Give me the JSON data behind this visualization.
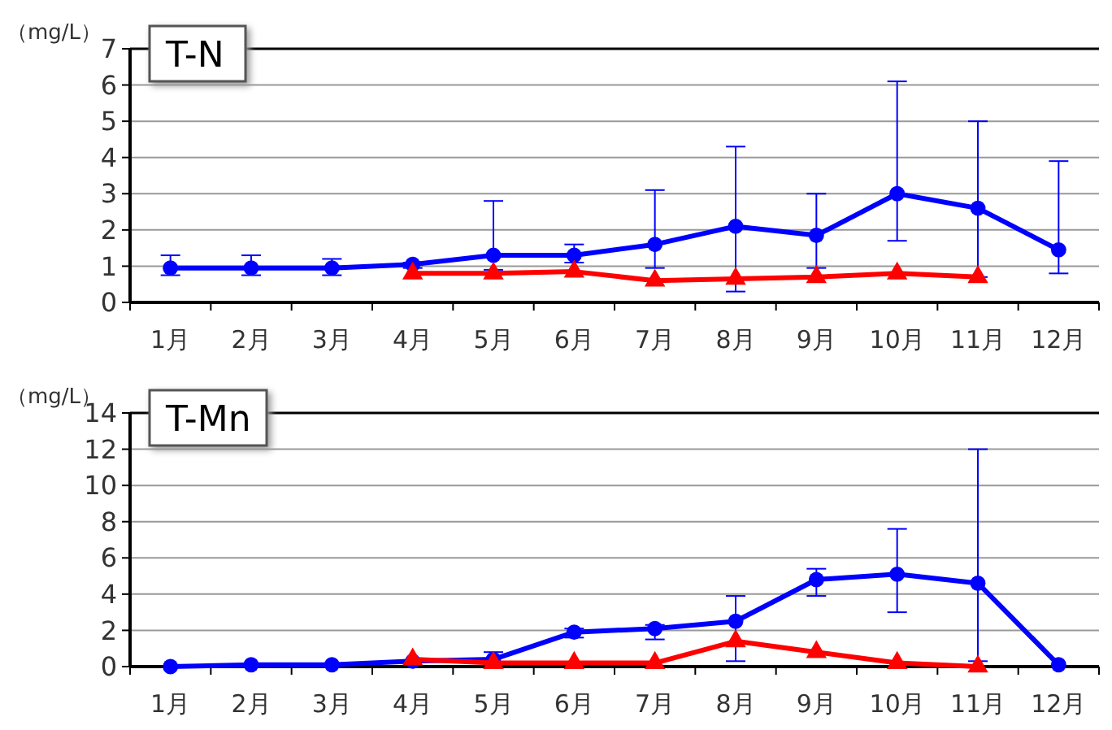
{
  "chart_data": [
    {
      "type": "line",
      "title": "T-N",
      "ylabel": "（mg/L）",
      "categories": [
        "1月",
        "2月",
        "3月",
        "4月",
        "5月",
        "6月",
        "7月",
        "8月",
        "9月",
        "10月",
        "11月",
        "12月"
      ],
      "ylim": [
        0,
        7
      ],
      "yticks": [
        0,
        1,
        2,
        3,
        4,
        5,
        6,
        7
      ],
      "grid": "y",
      "line_style": "solid",
      "series": [
        {
          "color": "#0000ff",
          "marker": "circle",
          "values": [
            0.95,
            0.95,
            0.95,
            1.05,
            1.3,
            1.3,
            1.6,
            2.1,
            1.85,
            3.0,
            2.6,
            1.45
          ],
          "errors": [
            [
              0.75,
              1.3
            ],
            [
              0.75,
              1.3
            ],
            [
              0.75,
              1.2
            ],
            [
              0.95,
              1.1
            ],
            [
              0.9,
              2.8
            ],
            [
              1.1,
              1.6
            ],
            [
              0.95,
              3.1
            ],
            [
              0.3,
              4.3
            ],
            [
              0.95,
              3.0
            ],
            [
              1.7,
              6.1
            ],
            [
              0.7,
              5.0
            ],
            [
              0.8,
              3.9
            ]
          ]
        },
        {
          "color": "#ff0000",
          "marker": "triangle",
          "values": [
            null,
            null,
            null,
            0.8,
            0.8,
            0.85,
            0.6,
            0.65,
            0.7,
            0.8,
            0.7,
            null
          ]
        }
      ]
    },
    {
      "type": "line",
      "title": "T-Mn",
      "ylabel": "（mg/L）",
      "categories": [
        "1月",
        "2月",
        "3月",
        "4月",
        "5月",
        "6月",
        "7月",
        "8月",
        "9月",
        "10月",
        "11月",
        "12月"
      ],
      "ylim": [
        0,
        14
      ],
      "yticks": [
        0,
        2,
        4,
        6,
        8,
        10,
        12,
        14
      ],
      "grid": "y",
      "line_style": "solid",
      "series": [
        {
          "color": "#0000ff",
          "marker": "circle",
          "values": [
            0.0,
            0.1,
            0.1,
            0.3,
            0.4,
            1.9,
            2.1,
            2.5,
            4.8,
            5.1,
            4.6,
            0.1
          ],
          "errors": [
            null,
            null,
            null,
            null,
            [
              0.1,
              0.8
            ],
            [
              1.6,
              2.1
            ],
            [
              1.5,
              2.3
            ],
            [
              0.3,
              3.9
            ],
            [
              3.9,
              5.4
            ],
            [
              3.0,
              7.6
            ],
            [
              0.3,
              12.0
            ],
            null
          ]
        },
        {
          "color": "#ff0000",
          "marker": "triangle",
          "values": [
            null,
            null,
            null,
            0.4,
            0.2,
            0.2,
            0.2,
            1.4,
            0.8,
            0.2,
            0.0,
            null
          ]
        }
      ]
    }
  ]
}
